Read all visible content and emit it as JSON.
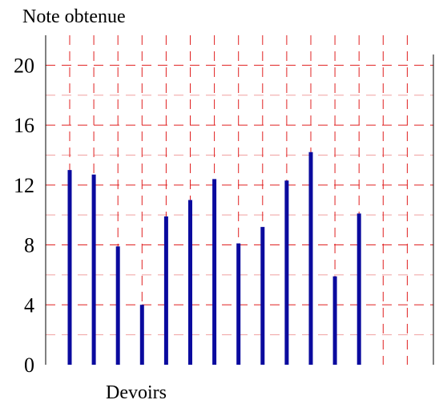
{
  "chart_data": {
    "type": "bar",
    "ylabel": "Note obtenue",
    "xlabel": "Devoirs",
    "yticks": [
      "0",
      "4",
      "8",
      "12",
      "16",
      "20"
    ],
    "ylim": [
      0,
      20
    ],
    "grid": true,
    "values": [
      13,
      12.7,
      7.9,
      4,
      9.9,
      11,
      12.4,
      8.1,
      9.2,
      12.3,
      14.2,
      5.9,
      10.1
    ],
    "colors": {
      "bar": "#0a0a9e",
      "grid_major": "#e02020",
      "grid_minor": "#f0a0a0",
      "axis": "#000000"
    }
  }
}
